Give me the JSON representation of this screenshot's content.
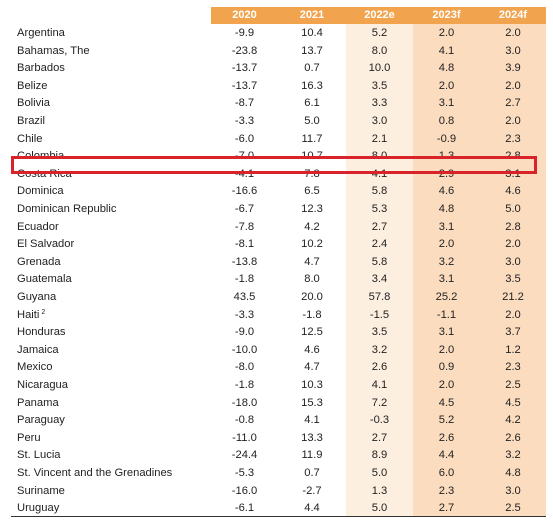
{
  "colors": {
    "header_bg": "#f2a34e",
    "estimate_col_bg": "#fdefe0",
    "forecast_col_bg": "#fbdcbf",
    "highlight_border": "#d8232a"
  },
  "columns": [
    "2020",
    "2021",
    "2022e",
    "2023f",
    "2024f"
  ],
  "rows": [
    {
      "country": "Argentina",
      "sup": "",
      "v": [
        "-9.9",
        "10.4",
        "5.2",
        "2.0",
        "2.0"
      ]
    },
    {
      "country": "Bahamas, The",
      "sup": "",
      "v": [
        "-23.8",
        "13.7",
        "8.0",
        "4.1",
        "3.0"
      ]
    },
    {
      "country": "Barbados",
      "sup": "",
      "v": [
        "-13.7",
        "0.7",
        "10.0",
        "4.8",
        "3.9"
      ]
    },
    {
      "country": "Belize",
      "sup": "",
      "v": [
        "-13.7",
        "16.3",
        "3.5",
        "2.0",
        "2.0"
      ]
    },
    {
      "country": "Bolivia",
      "sup": "",
      "v": [
        "-8.7",
        "6.1",
        "3.3",
        "3.1",
        "2.7"
      ]
    },
    {
      "country": "Brazil",
      "sup": "",
      "v": [
        "-3.3",
        "5.0",
        "3.0",
        "0.8",
        "2.0"
      ]
    },
    {
      "country": "Chile",
      "sup": "",
      "v": [
        "-6.0",
        "11.7",
        "2.1",
        "-0.9",
        "2.3"
      ]
    },
    {
      "country": "Colombia",
      "sup": "",
      "v": [
        "-7.0",
        "10.7",
        "8.0",
        "1.3",
        "2.8"
      ]
    },
    {
      "country": "Costa Rica",
      "sup": "",
      "v": [
        "-4.1",
        "7.8",
        "4.1",
        "2.9",
        "3.1"
      ]
    },
    {
      "country": "Dominica",
      "sup": "",
      "v": [
        "-16.6",
        "6.5",
        "5.8",
        "4.6",
        "4.6"
      ]
    },
    {
      "country": "Dominican Republic",
      "sup": "",
      "v": [
        "-6.7",
        "12.3",
        "5.3",
        "4.8",
        "5.0"
      ]
    },
    {
      "country": "Ecuador",
      "sup": "",
      "v": [
        "-7.8",
        "4.2",
        "2.7",
        "3.1",
        "2.8"
      ]
    },
    {
      "country": "El Salvador",
      "sup": "",
      "v": [
        "-8.1",
        "10.2",
        "2.4",
        "2.0",
        "2.0"
      ]
    },
    {
      "country": "Grenada",
      "sup": "",
      "v": [
        "-13.8",
        "4.7",
        "5.8",
        "3.2",
        "3.0"
      ]
    },
    {
      "country": "Guatemala",
      "sup": "",
      "v": [
        "-1.8",
        "8.0",
        "3.4",
        "3.1",
        "3.5"
      ]
    },
    {
      "country": "Guyana",
      "sup": "",
      "v": [
        "43.5",
        "20.0",
        "57.8",
        "25.2",
        "21.2"
      ]
    },
    {
      "country": "Haiti",
      "sup": "2",
      "v": [
        "-3.3",
        "-1.8",
        "-1.5",
        "-1.1",
        "2.0"
      ]
    },
    {
      "country": "Honduras",
      "sup": "",
      "v": [
        "-9.0",
        "12.5",
        "3.5",
        "3.1",
        "3.7"
      ]
    },
    {
      "country": "Jamaica",
      "sup": "",
      "v": [
        "-10.0",
        "4.6",
        "3.2",
        "2.0",
        "1.2"
      ]
    },
    {
      "country": "Mexico",
      "sup": "",
      "v": [
        "-8.0",
        "4.7",
        "2.6",
        "0.9",
        "2.3"
      ]
    },
    {
      "country": "Nicaragua",
      "sup": "",
      "v": [
        "-1.8",
        "10.3",
        "4.1",
        "2.0",
        "2.5"
      ]
    },
    {
      "country": "Panama",
      "sup": "",
      "v": [
        "-18.0",
        "15.3",
        "7.2",
        "4.5",
        "4.5"
      ]
    },
    {
      "country": "Paraguay",
      "sup": "",
      "v": [
        "-0.8",
        "4.1",
        "-0.3",
        "5.2",
        "4.2"
      ]
    },
    {
      "country": "Peru",
      "sup": "",
      "v": [
        "-11.0",
        "13.3",
        "2.7",
        "2.6",
        "2.6"
      ]
    },
    {
      "country": "St. Lucia",
      "sup": "",
      "v": [
        "-24.4",
        "11.9",
        "8.9",
        "4.4",
        "3.2"
      ]
    },
    {
      "country": "St. Vincent and the Grenadines",
      "sup": "",
      "v": [
        "-5.3",
        "0.7",
        "5.0",
        "6.0",
        "4.8"
      ]
    },
    {
      "country": "Suriname",
      "sup": "",
      "v": [
        "-16.0",
        "-2.7",
        "1.3",
        "2.3",
        "3.0"
      ]
    },
    {
      "country": "Uruguay",
      "sup": "",
      "v": [
        "-6.1",
        "4.4",
        "5.0",
        "2.7",
        "2.5"
      ]
    }
  ]
}
